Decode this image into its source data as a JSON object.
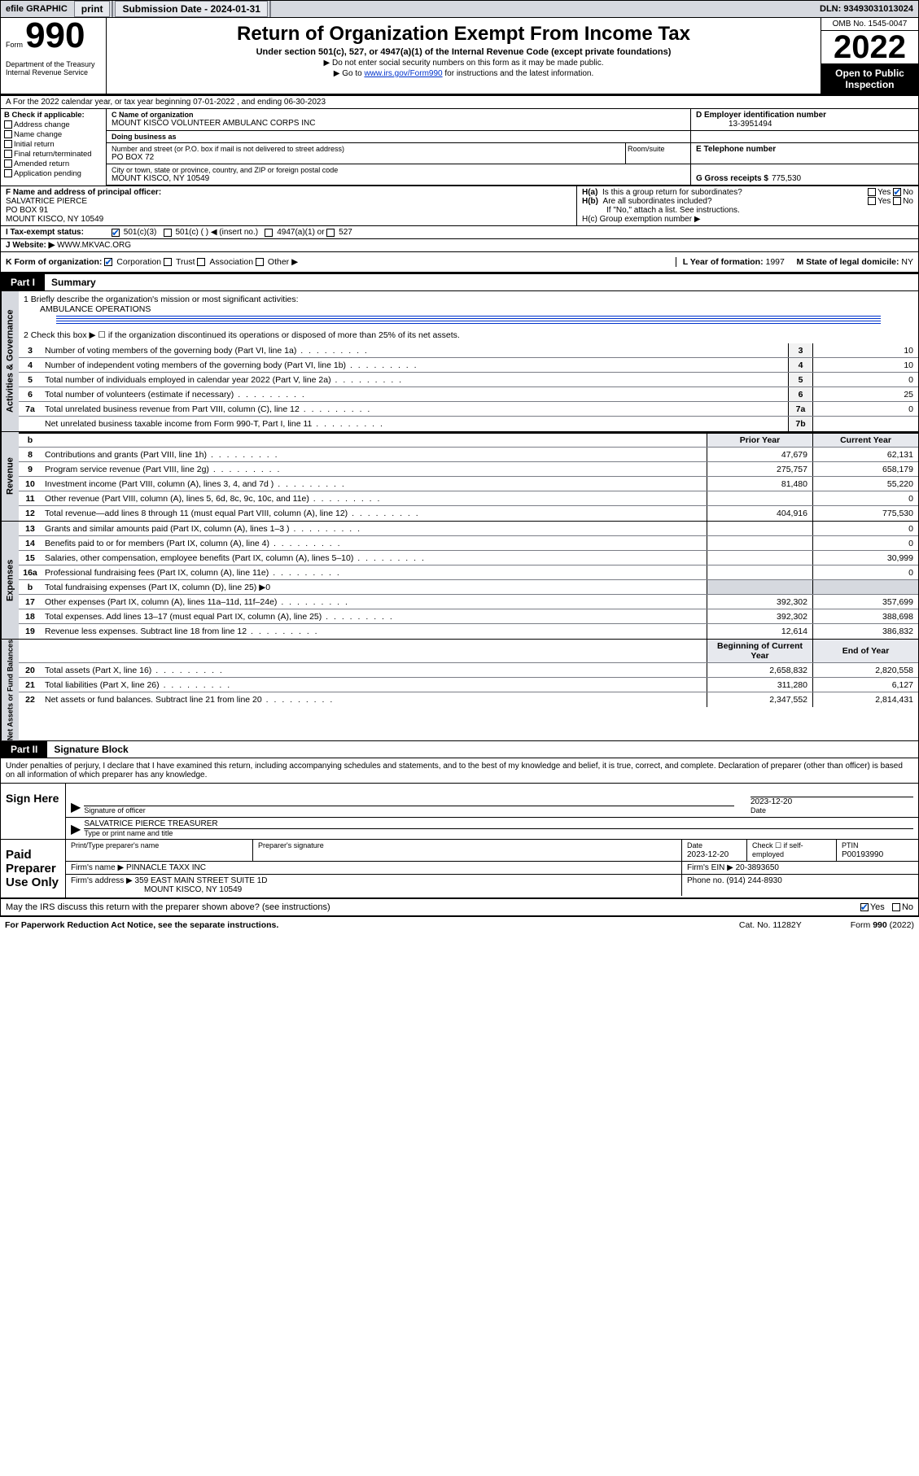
{
  "topbar": {
    "efile": "efile GRAPHIC",
    "print": "print",
    "subdate_label": "Submission Date - 2024-01-31",
    "dln_label": "DLN: 93493031013024"
  },
  "header": {
    "form_small": "Form",
    "form_big": "990",
    "dept": "Department of the Treasury Internal Revenue Service",
    "title": "Return of Organization Exempt From Income Tax",
    "sub": "Under section 501(c), 527, or 4947(a)(1) of the Internal Revenue Code (except private foundations)",
    "note1": "▶ Do not enter social security numbers on this form as it may be made public.",
    "note2_pre": "▶ Go to ",
    "note2_link": "www.irs.gov/Form990",
    "note2_post": " for instructions and the latest information.",
    "omb": "OMB No. 1545-0047",
    "year": "2022",
    "open": "Open to Public Inspection"
  },
  "row_a": {
    "text": "A For the 2022 calendar year, or tax year beginning 07-01-2022   , and ending 06-30-2023"
  },
  "col_b": {
    "title": "B Check if applicable:",
    "items": [
      "Address change",
      "Name change",
      "Initial return",
      "Final return/terminated",
      "Amended return",
      "Application pending"
    ]
  },
  "name_block": {
    "c_lab": "C Name of organization",
    "c_name": "MOUNT KISCO VOLUNTEER AMBULANC CORPS INC",
    "dba_lab": "Doing business as",
    "dba": "",
    "addr_lab": "Number and street (or P.O. box if mail is not delivered to street address)",
    "addr": "PO BOX 72",
    "room_lab": "Room/suite",
    "city_lab": "City or town, state or province, country, and ZIP or foreign postal code",
    "city": "MOUNT KISCO, NY  10549",
    "d_lab": "D Employer identification number",
    "d_val": "13-3951494",
    "e_lab": "E Telephone number",
    "e_val": "",
    "g_lab": "G Gross receipts $",
    "g_val": "775,530"
  },
  "f_block": {
    "f_lab": "F Name and address of principal officer:",
    "f_name": "SALVATRICE PIERCE",
    "f_addr1": "PO BOX 91",
    "f_addr2": "MOUNT KISCO, NY  10549",
    "ha_lab": "H(a)  Is this a group return for subordinates?",
    "ha_yes": "Yes",
    "ha_no": "No",
    "hb_lab": "H(b)  Are all subordinates included?",
    "hb_note": "If \"No,\" attach a list. See instructions.",
    "hc_lab": "H(c)  Group exemption number ▶"
  },
  "tax_row": {
    "i_lab": "I   Tax-exempt status:",
    "i_501c3": "501(c)(3)",
    "i_501c": "501(c) (  ) ◀ (insert no.)",
    "i_4947": "4947(a)(1) or",
    "i_527": "527"
  },
  "j_row": {
    "lab": "J   Website: ▶",
    "val": "WWW.MKVAC.ORG"
  },
  "k_row": {
    "lab": "K Form of organization:",
    "corp": "Corporation",
    "trust": "Trust",
    "assoc": "Association",
    "other": "Other ▶",
    "l_lab": "L Year of formation:",
    "l_val": "1997",
    "m_lab": "M State of legal domicile:",
    "m_val": "NY"
  },
  "part1": {
    "tab": "Part I",
    "title": "Summary"
  },
  "summary_top": {
    "l1": "1  Briefly describe the organization's mission or most significant activities:",
    "l1val": "AMBULANCE OPERATIONS",
    "l2": "2  Check this box ▶ ☐  if the organization discontinued its operations or disposed of more than 25% of its net assets."
  },
  "gov_lines": [
    {
      "n": "3",
      "d": "Number of voting members of the governing body (Part VI, line 1a)",
      "box": "3",
      "v": "10"
    },
    {
      "n": "4",
      "d": "Number of independent voting members of the governing body (Part VI, line 1b)",
      "box": "4",
      "v": "10"
    },
    {
      "n": "5",
      "d": "Total number of individuals employed in calendar year 2022 (Part V, line 2a)",
      "box": "5",
      "v": "0"
    },
    {
      "n": "6",
      "d": "Total number of volunteers (estimate if necessary)",
      "box": "6",
      "v": "25"
    },
    {
      "n": "7a",
      "d": "Total unrelated business revenue from Part VIII, column (C), line 12",
      "box": "7a",
      "v": "0"
    },
    {
      "n": "",
      "d": "Net unrelated business taxable income from Form 990-T, Part I, line 11",
      "box": "7b",
      "v": ""
    }
  ],
  "rev_hdr": {
    "prior": "Prior Year",
    "curr": "Current Year"
  },
  "rev_lines": [
    {
      "n": "8",
      "d": "Contributions and grants (Part VIII, line 1h)",
      "p": "47,679",
      "c": "62,131"
    },
    {
      "n": "9",
      "d": "Program service revenue (Part VIII, line 2g)",
      "p": "275,757",
      "c": "658,179"
    },
    {
      "n": "10",
      "d": "Investment income (Part VIII, column (A), lines 3, 4, and 7d )",
      "p": "81,480",
      "c": "55,220"
    },
    {
      "n": "11",
      "d": "Other revenue (Part VIII, column (A), lines 5, 6d, 8c, 9c, 10c, and 11e)",
      "p": "",
      "c": "0"
    },
    {
      "n": "12",
      "d": "Total revenue—add lines 8 through 11 (must equal Part VIII, column (A), line 12)",
      "p": "404,916",
      "c": "775,530"
    }
  ],
  "exp_lines": [
    {
      "n": "13",
      "d": "Grants and similar amounts paid (Part IX, column (A), lines 1–3 )",
      "p": "",
      "c": "0"
    },
    {
      "n": "14",
      "d": "Benefits paid to or for members (Part IX, column (A), line 4)",
      "p": "",
      "c": "0"
    },
    {
      "n": "15",
      "d": "Salaries, other compensation, employee benefits (Part IX, column (A), lines 5–10)",
      "p": "",
      "c": "30,999"
    },
    {
      "n": "16a",
      "d": "Professional fundraising fees (Part IX, column (A), line 11e)",
      "p": "",
      "c": "0"
    },
    {
      "n": "b",
      "d": "Total fundraising expenses (Part IX, column (D), line 25) ▶0",
      "p": null,
      "c": null
    },
    {
      "n": "17",
      "d": "Other expenses (Part IX, column (A), lines 11a–11d, 11f–24e)",
      "p": "392,302",
      "c": "357,699"
    },
    {
      "n": "18",
      "d": "Total expenses. Add lines 13–17 (must equal Part IX, column (A), line 25)",
      "p": "392,302",
      "c": "388,698"
    },
    {
      "n": "19",
      "d": "Revenue less expenses. Subtract line 18 from line 12",
      "p": "12,614",
      "c": "386,832"
    }
  ],
  "na_hdr": {
    "b": "Beginning of Current Year",
    "e": "End of Year"
  },
  "na_lines": [
    {
      "n": "20",
      "d": "Total assets (Part X, line 16)",
      "p": "2,658,832",
      "c": "2,820,558"
    },
    {
      "n": "21",
      "d": "Total liabilities (Part X, line 26)",
      "p": "311,280",
      "c": "6,127"
    },
    {
      "n": "22",
      "d": "Net assets or fund balances. Subtract line 21 from line 20",
      "p": "2,347,552",
      "c": "2,814,431"
    }
  ],
  "part2": {
    "tab": "Part II",
    "title": "Signature Block"
  },
  "sig": {
    "perjury": "Under penalties of perjury, I declare that I have examined this return, including accompanying schedules and statements, and to the best of my knowledge and belief, it is true, correct, and complete. Declaration of preparer (other than officer) is based on all information of which preparer has any knowledge.",
    "sign_here": "Sign Here",
    "sig_officer": "Signature of officer",
    "date_lab": "Date",
    "date_val": "2023-12-20",
    "name_title": "SALVATRICE PIERCE  TREASURER",
    "name_title_lab": "Type or print name and title",
    "paid": "Paid Preparer Use Only",
    "prep_name_lab": "Print/Type preparer's name",
    "prep_sig_lab": "Preparer's signature",
    "prep_date_lab": "Date",
    "prep_date": "2023-12-20",
    "check_if": "Check ☐ if self-employed",
    "ptin_lab": "PTIN",
    "ptin": "P00193990",
    "firm_name_lab": "Firm's name   ▶",
    "firm_name": "PINNACLE TAXX INC",
    "firm_ein_lab": "Firm's EIN ▶",
    "firm_ein": "20-3893650",
    "firm_addr_lab": "Firm's address ▶",
    "firm_addr1": "359 EAST MAIN STREET SUITE 1D",
    "firm_addr2": "MOUNT KISCO, NY  10549",
    "phone_lab": "Phone no.",
    "phone": "(914) 244-8930",
    "may_irs": "May the IRS discuss this return with the preparer shown above? (see instructions)",
    "yes": "Yes",
    "no": "No"
  },
  "footer": {
    "left": "For Paperwork Reduction Act Notice, see the separate instructions.",
    "mid": "Cat. No. 11282Y",
    "right": "Form 990 (2022)"
  },
  "side_labels": {
    "gov": "Activities & Governance",
    "rev": "Revenue",
    "exp": "Expenses",
    "na": "Net Assets or Fund Balances"
  }
}
